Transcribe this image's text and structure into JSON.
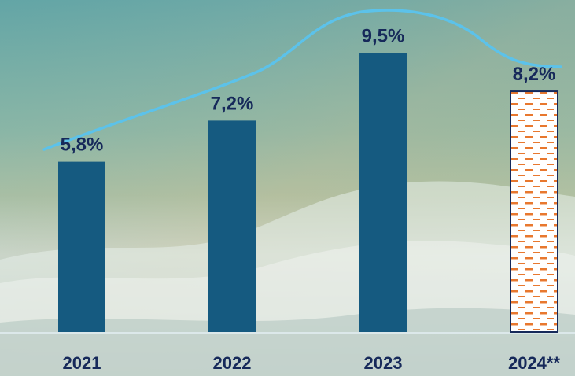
{
  "chart_data": {
    "type": "bar",
    "categories": [
      "2021",
      "2022",
      "2023",
      "2024**"
    ],
    "values": [
      5.8,
      7.2,
      9.5,
      8.2
    ],
    "value_labels": [
      "5,8%",
      "7,2%",
      "9,5%",
      "8,2%"
    ],
    "projected": [
      false,
      false,
      false,
      true
    ],
    "ylim": [
      0,
      10.4
    ],
    "grid": false,
    "legend": "none",
    "colors": {
      "bar": "#155a80",
      "projected_fill": "#ffffff",
      "projected_border": "#16295a",
      "projected_dash": "#e8782f",
      "labels": "#16295a",
      "trend_line": "#5cc2ea",
      "baseline": "#dce8ea"
    }
  }
}
